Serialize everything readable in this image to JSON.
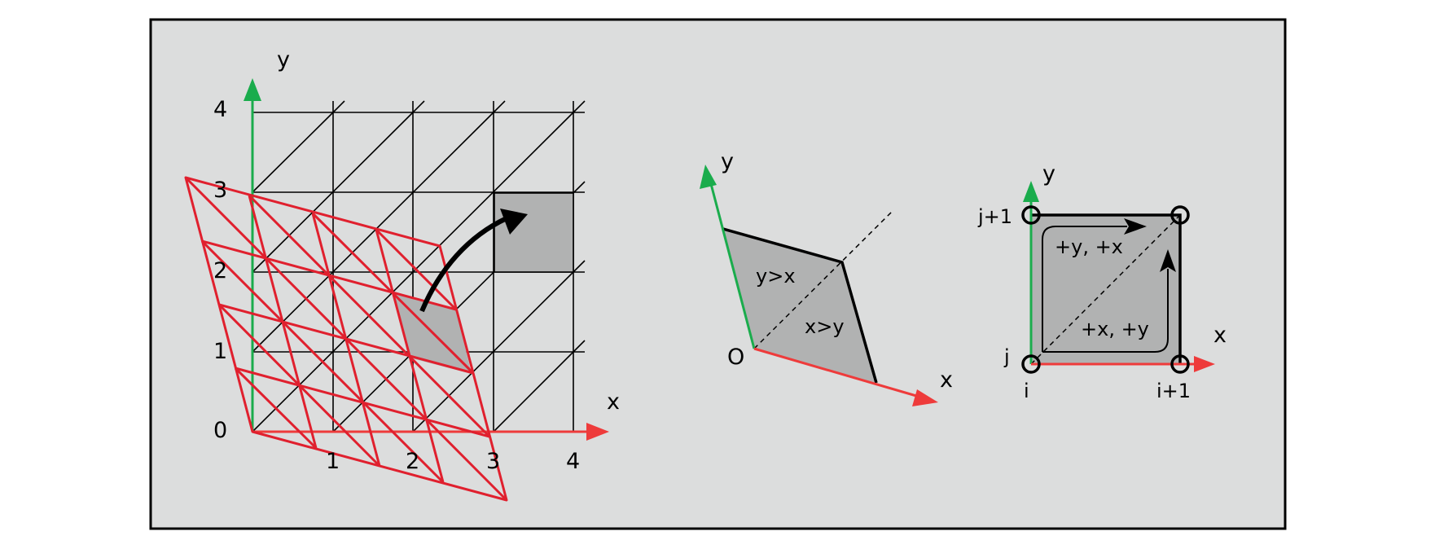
{
  "colors": {
    "panel_background": "#dcdddd",
    "panel_border": "#000000",
    "y_axis": "#1aac4c",
    "x_axis": "#ee3b3b",
    "grid_black": "#000000",
    "grid_red": "#e0202e",
    "cell_fill": "#b1b2b2"
  },
  "left_panel": {
    "axis_x_label": "x",
    "axis_y_label": "y",
    "tick_labels_x": [
      "1",
      "2",
      "3",
      "4"
    ],
    "tick_labels_y": [
      "0",
      "1",
      "2",
      "3",
      "4"
    ]
  },
  "middle_panel": {
    "axis_x_label": "x",
    "axis_y_label": "y",
    "origin_label": "O",
    "region_upper_label": "y>x",
    "region_lower_label": "x>y"
  },
  "right_panel": {
    "axis_x_label": "x",
    "axis_y_label": "y",
    "label_i": "i",
    "label_i_plus_1": "i+1",
    "label_j": "j",
    "label_j_plus_1": "j+1",
    "path_upper_label": "+y, +x",
    "path_lower_label": "+x, +y"
  }
}
